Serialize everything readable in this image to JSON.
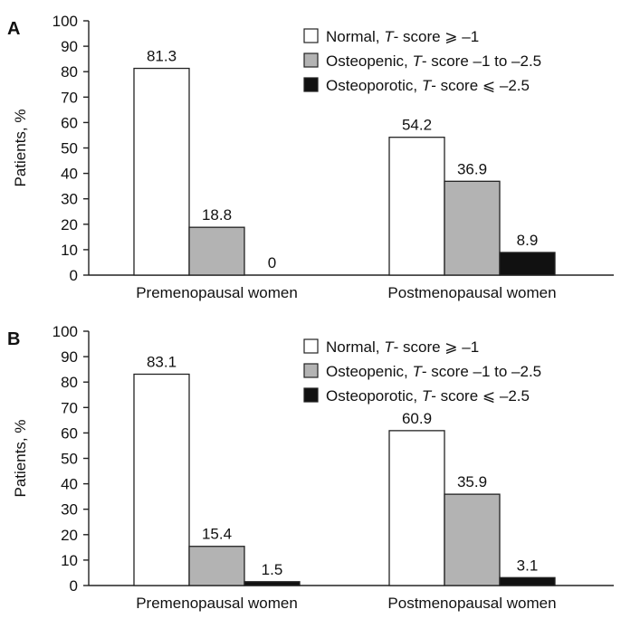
{
  "chart_data": [
    {
      "type": "bar",
      "panel": "A",
      "categories": [
        "Premenopausal women",
        "Postmenopausal women"
      ],
      "series": [
        {
          "name": "Normal, T-score ≥ −1",
          "name_prefix": "Normal, ",
          "name_italic": "T",
          "name_suffix": "- score ⩾ –1",
          "color": "#ffffff",
          "values": [
            81.3,
            54.2
          ],
          "labels": [
            "81.3",
            "54.2"
          ]
        },
        {
          "name": "Osteopenic, T-score −1 to −2.5",
          "name_prefix": "Osteopenic, ",
          "name_italic": "T",
          "name_suffix": "- score –1 to –2.5",
          "color": "#b3b3b3",
          "values": [
            18.8,
            36.9
          ],
          "labels": [
            "18.8",
            "36.9"
          ]
        },
        {
          "name": "Osteoporotic, T-score ≤ −2.5",
          "name_prefix": "Osteoporotic, ",
          "name_italic": "T",
          "name_suffix": "- score ⩽ –2.5",
          "color": "#111111",
          "values": [
            0,
            8.9
          ],
          "labels": [
            "0",
            "8.9"
          ]
        }
      ],
      "ylabel": "Patients, %",
      "ylim": [
        0,
        100
      ],
      "yticks": [
        "0",
        "10",
        "20",
        "30",
        "40",
        "50",
        "60",
        "70",
        "80",
        "90",
        "100"
      ],
      "legend": "top-right",
      "grid": false
    },
    {
      "type": "bar",
      "panel": "B",
      "categories": [
        "Premenopausal women",
        "Postmenopausal women"
      ],
      "series": [
        {
          "name": "Normal, T-score ≥ −1",
          "name_prefix": "Normal, ",
          "name_italic": "T",
          "name_suffix": "- score ⩾ –1",
          "color": "#ffffff",
          "values": [
            83.1,
            60.9
          ],
          "labels": [
            "83.1",
            "60.9"
          ]
        },
        {
          "name": "Osteopenic, T-score −1 to −2.5",
          "name_prefix": "Osteopenic, ",
          "name_italic": "T",
          "name_suffix": "- score –1 to –2.5",
          "color": "#b3b3b3",
          "values": [
            15.4,
            35.9
          ],
          "labels": [
            "15.4",
            "35.9"
          ]
        },
        {
          "name": "Osteoporotic, T-score ≤ −2.5",
          "name_prefix": "Osteoporotic, ",
          "name_italic": "T",
          "name_suffix": "- score ⩽ –2.5",
          "color": "#111111",
          "values": [
            1.5,
            3.1
          ],
          "labels": [
            "1.5",
            "3.1"
          ]
        }
      ],
      "ylabel": "Patients, %",
      "ylim": [
        0,
        100
      ],
      "yticks": [
        "0",
        "10",
        "20",
        "30",
        "40",
        "50",
        "60",
        "70",
        "80",
        "90",
        "100"
      ],
      "legend": "top-right",
      "grid": false
    }
  ]
}
